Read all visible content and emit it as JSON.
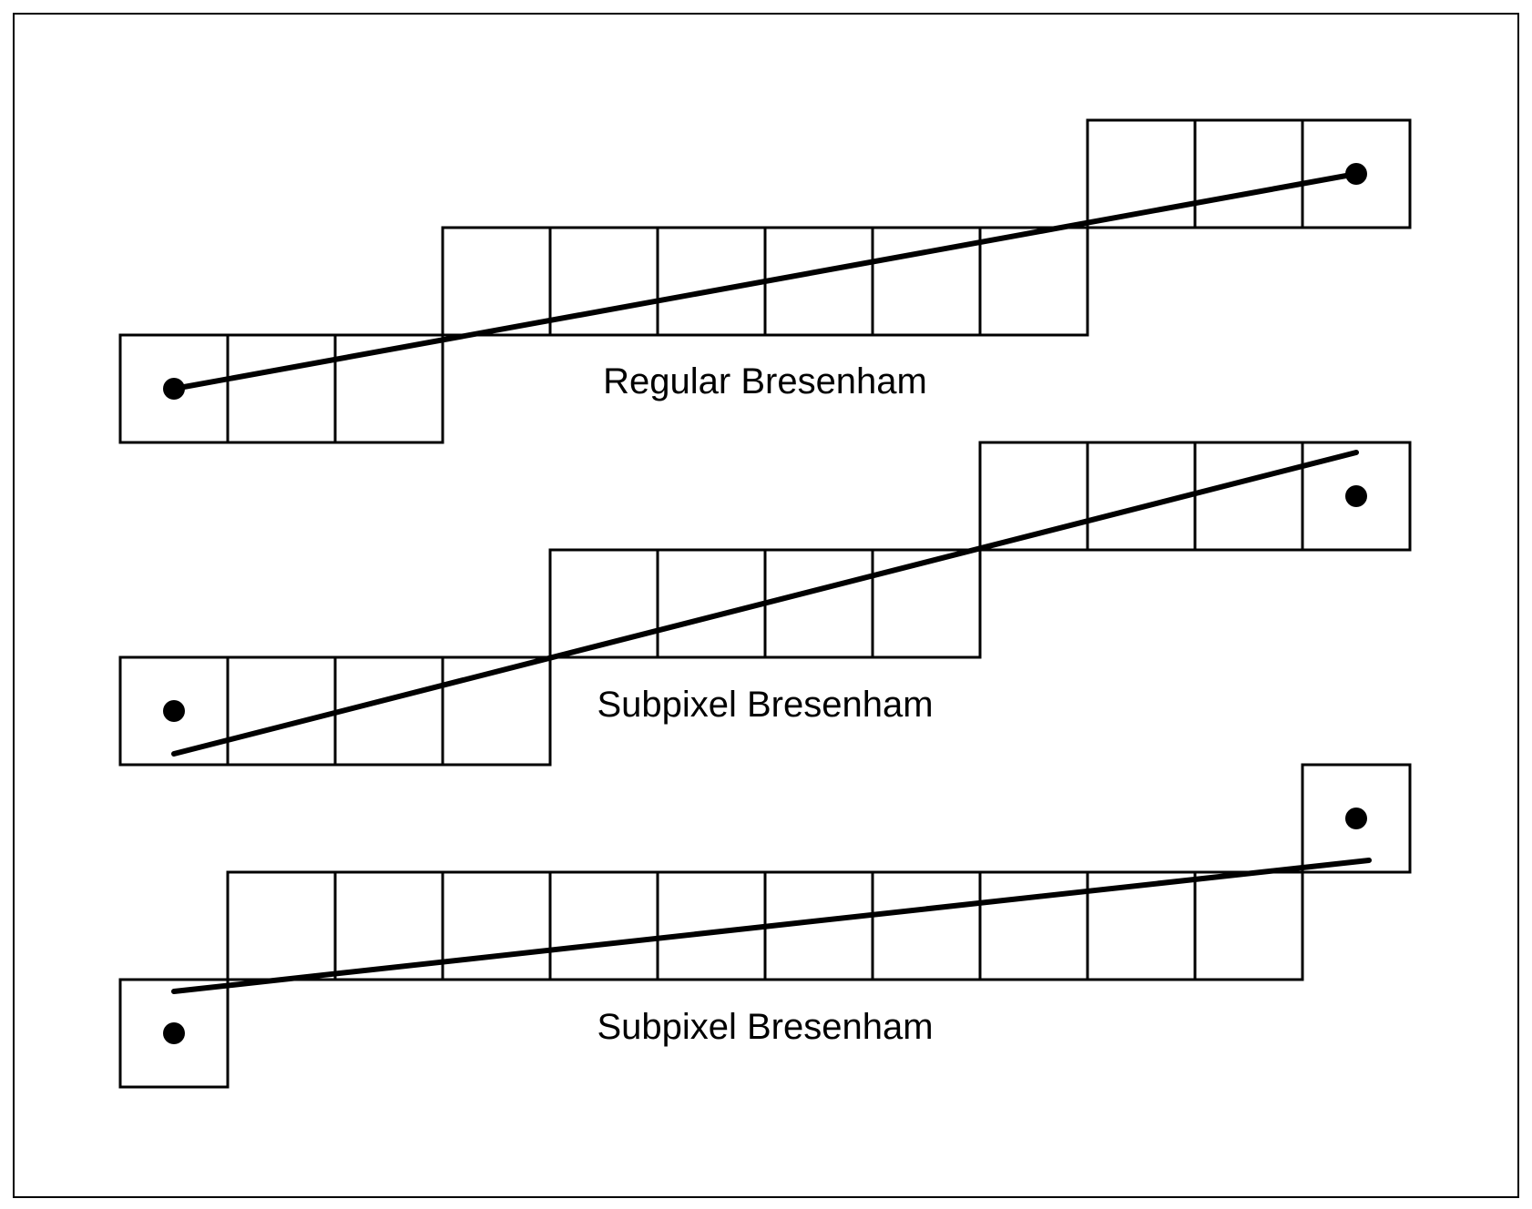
{
  "figure": {
    "colors": {
      "background": "#ffffff",
      "stroke": "#000000"
    },
    "panels": [
      {
        "label": "Regular Bresenham",
        "pixel_steps": [
          3,
          6,
          3
        ],
        "endpoint_markers": "centered-on-line"
      },
      {
        "label": "Subpixel Bresenham",
        "pixel_steps": [
          4,
          4,
          4
        ],
        "endpoint_markers": "offset-from-line"
      },
      {
        "label": "Subpixel Bresenham",
        "pixel_steps": [
          1,
          10,
          1
        ],
        "endpoint_markers": "offset-from-line"
      }
    ]
  }
}
